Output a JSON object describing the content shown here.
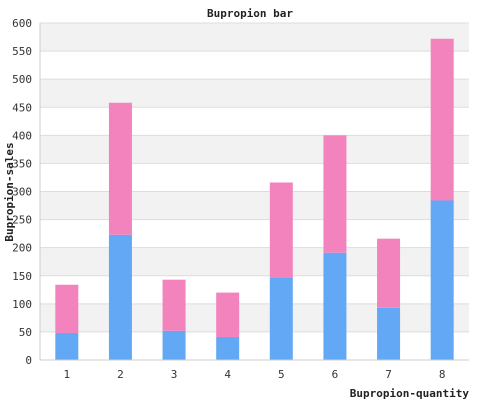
{
  "chart_data": {
    "type": "bar",
    "stacked": true,
    "title": "Bupropion bar",
    "xlabel": "Bupropion-quantity",
    "ylabel": "Bupropion-sales",
    "categories": [
      "1",
      "2",
      "3",
      "4",
      "5",
      "6",
      "7",
      "8"
    ],
    "ylim": [
      0,
      600
    ],
    "yticks": [
      0,
      50,
      100,
      150,
      200,
      250,
      300,
      350,
      400,
      450,
      500,
      550,
      600
    ],
    "grid": true,
    "series": [
      {
        "values": [
          48,
          223,
          52,
          41,
          146,
          191,
          93,
          284
        ],
        "color": "#62a8f5"
      },
      {
        "values": [
          86,
          235,
          91,
          79,
          170,
          209,
          123,
          288
        ],
        "color": "#f283bd"
      }
    ],
    "band_color": "#f2f2f2"
  }
}
